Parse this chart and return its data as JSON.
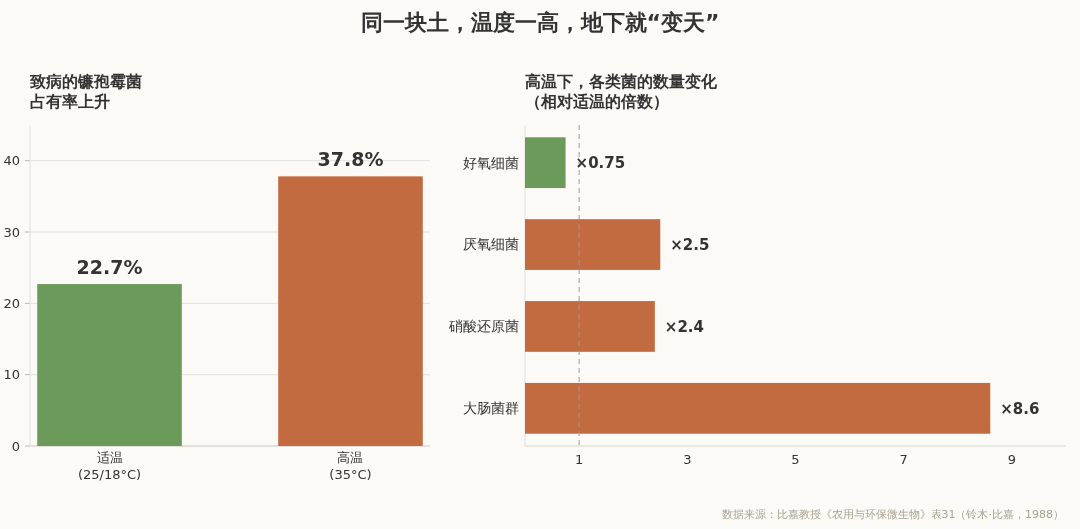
{
  "chart_data": [
    {
      "type": "other",
      "title": "同一块土，温度一高，地下就“变天”"
    },
    {
      "type": "bar",
      "title": "致病的镰孢霉菌占有率上升",
      "categories": [
        "适温\n(25/18°C)",
        "高温\n(35°C)"
      ],
      "values": [
        22.7,
        37.8
      ],
      "colors": [
        "#6b9a5b",
        "#c26b40"
      ],
      "value_labels": [
        "22.7%",
        "37.8%"
      ],
      "ylim": [
        0,
        45
      ],
      "yticks": [
        0,
        10,
        20,
        30,
        40
      ],
      "grid": "y"
    },
    {
      "type": "bar",
      "orientation": "horizontal",
      "title": "高温下，各类菌的数量变化（相对适温的倍数）",
      "categories": [
        "好氧细菌",
        "厌氧细菌",
        "硝酸还原菌",
        "大肠菌群"
      ],
      "values": [
        0.75,
        2.5,
        2.4,
        8.6
      ],
      "colors": [
        "#6b9a5b",
        "#c26b40",
        "#c26b40",
        "#c26b40"
      ],
      "value_labels": [
        "×0.75",
        "×2.5",
        "×2.4",
        "×8.6"
      ],
      "xlim": [
        0,
        10
      ],
      "xticks": [
        1,
        3,
        5,
        7,
        9
      ],
      "ref_lines": [
        {
          "axis": "x",
          "value": 1,
          "color": "#999999",
          "line_style": "dashed"
        }
      ],
      "annotations": [
        "数据来源：比嘉教授《农用与环保微生物》表31（铃木·比嘉，1988）"
      ]
    }
  ]
}
